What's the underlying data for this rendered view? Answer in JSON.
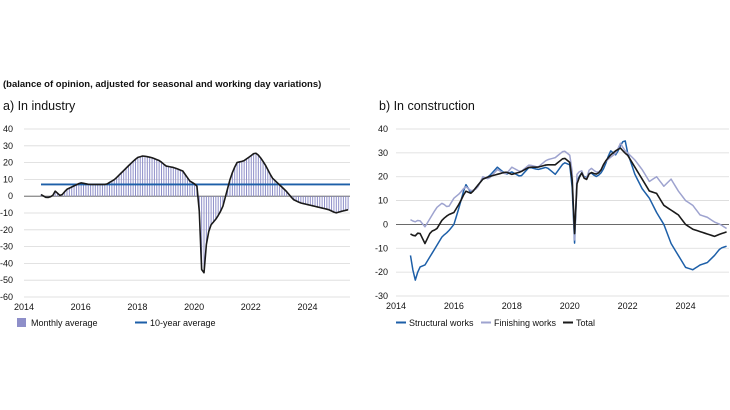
{
  "subtitle": "(balance of opinion, adjusted for seasonal and working day variations)",
  "colors": {
    "bars": "#8e8fc9",
    "avg10": "#1d5fa8",
    "structural": "#1d5fa8",
    "finishing": "#9ea3cf",
    "total": "#1a1a1a",
    "grid": "#d9d9d9"
  },
  "chart_data": [
    {
      "id": "industry",
      "title": "a)  In industry",
      "type": "bar",
      "xlabel": "",
      "ylabel": "",
      "xlim": [
        2014,
        2025.5
      ],
      "ylim": [
        -60,
        40
      ],
      "x_ticks": [
        2014,
        2016,
        2018,
        2020,
        2022,
        2024
      ],
      "y_ticks": [
        -60,
        -50,
        -40,
        -30,
        -20,
        -10,
        0,
        10,
        20,
        30,
        40
      ],
      "grid": true,
      "legend": [
        {
          "name": "Monthly average",
          "kind": "bar"
        },
        {
          "name": "10-year average",
          "kind": "line"
        }
      ],
      "reference_line": {
        "name": "10-year average",
        "value": 7
      },
      "anchors": [
        [
          2014.6,
          1
        ],
        [
          2014.8,
          -1
        ],
        [
          2015.0,
          0
        ],
        [
          2015.1,
          3
        ],
        [
          2015.3,
          0
        ],
        [
          2015.5,
          4
        ],
        [
          2015.75,
          6
        ],
        [
          2016.0,
          8
        ],
        [
          2016.3,
          7
        ],
        [
          2016.6,
          7
        ],
        [
          2016.9,
          7
        ],
        [
          2017.2,
          10
        ],
        [
          2017.5,
          15
        ],
        [
          2017.8,
          20
        ],
        [
          2018.0,
          23
        ],
        [
          2018.2,
          24
        ],
        [
          2018.5,
          23
        ],
        [
          2018.8,
          21
        ],
        [
          2019.0,
          18
        ],
        [
          2019.3,
          17
        ],
        [
          2019.6,
          15
        ],
        [
          2019.85,
          9
        ],
        [
          2020.05,
          7
        ],
        [
          2020.15,
          5
        ],
        [
          2020.27,
          -45
        ],
        [
          2020.33,
          -50
        ],
        [
          2020.42,
          -30
        ],
        [
          2020.55,
          -18
        ],
        [
          2020.8,
          -13
        ],
        [
          2021.0,
          -7
        ],
        [
          2021.3,
          12
        ],
        [
          2021.5,
          20
        ],
        [
          2021.75,
          21
        ],
        [
          2022.0,
          24
        ],
        [
          2022.15,
          26
        ],
        [
          2022.3,
          24
        ],
        [
          2022.5,
          19
        ],
        [
          2022.75,
          11
        ],
        [
          2023.0,
          7
        ],
        [
          2023.25,
          3
        ],
        [
          2023.5,
          -2
        ],
        [
          2023.75,
          -4
        ],
        [
          2024.0,
          -5
        ],
        [
          2024.25,
          -6
        ],
        [
          2024.5,
          -7
        ],
        [
          2024.75,
          -8
        ],
        [
          2025.0,
          -10
        ],
        [
          2025.2,
          -9
        ],
        [
          2025.45,
          -8
        ]
      ]
    },
    {
      "id": "construction",
      "title": "b)  In construction",
      "type": "line",
      "xlabel": "",
      "ylabel": "",
      "xlim": [
        2014,
        2025.5
      ],
      "ylim": [
        -30,
        40
      ],
      "x_ticks": [
        2014,
        2016,
        2018,
        2020,
        2022,
        2024
      ],
      "y_ticks": [
        -30,
        -20,
        -10,
        0,
        10,
        20,
        30,
        40
      ],
      "grid": true,
      "legend": [
        {
          "name": "Structural works"
        },
        {
          "name": "Finishing works"
        },
        {
          "name": "Total"
        }
      ],
      "series": [
        {
          "name": "Structural works",
          "anchors": [
            [
              2014.5,
              -13
            ],
            [
              2014.65,
              -24
            ],
            [
              2014.8,
              -18
            ],
            [
              2015.0,
              -17
            ],
            [
              2015.2,
              -13
            ],
            [
              2015.4,
              -9
            ],
            [
              2015.6,
              -5
            ],
            [
              2015.8,
              -3
            ],
            [
              2016.0,
              0
            ],
            [
              2016.2,
              8
            ],
            [
              2016.4,
              17
            ],
            [
              2016.6,
              13
            ],
            [
              2016.8,
              16
            ],
            [
              2017.0,
              19
            ],
            [
              2017.2,
              20
            ],
            [
              2017.5,
              24
            ],
            [
              2017.8,
              21
            ],
            [
              2018.0,
              22
            ],
            [
              2018.3,
              20
            ],
            [
              2018.6,
              24
            ],
            [
              2018.9,
              23
            ],
            [
              2019.2,
              24
            ],
            [
              2019.5,
              21
            ],
            [
              2019.8,
              26
            ],
            [
              2020.0,
              25
            ],
            [
              2020.08,
              17
            ],
            [
              2020.15,
              -13
            ],
            [
              2020.25,
              18
            ],
            [
              2020.4,
              22
            ],
            [
              2020.55,
              19
            ],
            [
              2020.7,
              22
            ],
            [
              2020.9,
              20
            ],
            [
              2021.05,
              21
            ],
            [
              2021.2,
              24
            ],
            [
              2021.4,
              31
            ],
            [
              2021.6,
              29
            ],
            [
              2021.75,
              33
            ],
            [
              2021.9,
              36
            ],
            [
              2022.0,
              30
            ],
            [
              2022.25,
              21
            ],
            [
              2022.5,
              15
            ],
            [
              2022.75,
              11
            ],
            [
              2023.0,
              5
            ],
            [
              2023.25,
              0
            ],
            [
              2023.5,
              -8
            ],
            [
              2023.75,
              -13
            ],
            [
              2024.0,
              -18
            ],
            [
              2024.25,
              -19
            ],
            [
              2024.5,
              -17
            ],
            [
              2024.75,
              -16
            ],
            [
              2025.0,
              -13
            ],
            [
              2025.2,
              -10
            ],
            [
              2025.45,
              -9
            ]
          ]
        },
        {
          "name": "Finishing works",
          "anchors": [
            [
              2014.5,
              2
            ],
            [
              2014.65,
              1
            ],
            [
              2014.8,
              2
            ],
            [
              2015.0,
              -1
            ],
            [
              2015.2,
              3
            ],
            [
              2015.4,
              7
            ],
            [
              2015.6,
              9
            ],
            [
              2015.8,
              7
            ],
            [
              2016.0,
              11
            ],
            [
              2016.2,
              13
            ],
            [
              2016.4,
              16
            ],
            [
              2016.6,
              14
            ],
            [
              2016.8,
              15
            ],
            [
              2017.0,
              20
            ],
            [
              2017.2,
              19
            ],
            [
              2017.5,
              23
            ],
            [
              2017.8,
              21
            ],
            [
              2018.0,
              24
            ],
            [
              2018.3,
              22
            ],
            [
              2018.6,
              25
            ],
            [
              2018.9,
              24
            ],
            [
              2019.2,
              27
            ],
            [
              2019.5,
              28
            ],
            [
              2019.8,
              31
            ],
            [
              2020.0,
              29
            ],
            [
              2020.08,
              24
            ],
            [
              2020.15,
              -12
            ],
            [
              2020.25,
              21
            ],
            [
              2020.4,
              23
            ],
            [
              2020.55,
              18
            ],
            [
              2020.7,
              24
            ],
            [
              2020.9,
              22
            ],
            [
              2021.05,
              22
            ],
            [
              2021.2,
              26
            ],
            [
              2021.4,
              28
            ],
            [
              2021.6,
              30
            ],
            [
              2021.75,
              34
            ],
            [
              2021.9,
              31
            ],
            [
              2022.0,
              30
            ],
            [
              2022.25,
              27
            ],
            [
              2022.5,
              23
            ],
            [
              2022.75,
              18
            ],
            [
              2023.0,
              20
            ],
            [
              2023.25,
              16
            ],
            [
              2023.5,
              19
            ],
            [
              2023.75,
              14
            ],
            [
              2024.0,
              10
            ],
            [
              2024.25,
              8
            ],
            [
              2024.5,
              4
            ],
            [
              2024.75,
              3
            ],
            [
              2025.0,
              1
            ],
            [
              2025.2,
              0
            ],
            [
              2025.45,
              -2
            ]
          ]
        },
        {
          "name": "Total",
          "anchors": [
            [
              2014.5,
              -4
            ],
            [
              2014.65,
              -5
            ],
            [
              2014.8,
              -3
            ],
            [
              2015.0,
              -8
            ],
            [
              2015.2,
              -3
            ],
            [
              2015.4,
              -2
            ],
            [
              2015.6,
              2
            ],
            [
              2015.8,
              4
            ],
            [
              2016.0,
              5
            ],
            [
              2016.2,
              9
            ],
            [
              2016.4,
              14
            ],
            [
              2016.6,
              13
            ],
            [
              2016.8,
              16
            ],
            [
              2017.0,
              19
            ],
            [
              2017.2,
              20
            ],
            [
              2017.5,
              21
            ],
            [
              2017.8,
              22
            ],
            [
              2018.0,
              21
            ],
            [
              2018.3,
              22
            ],
            [
              2018.6,
              24
            ],
            [
              2018.9,
              24
            ],
            [
              2019.2,
              25
            ],
            [
              2019.5,
              25
            ],
            [
              2019.8,
              28
            ],
            [
              2020.0,
              26
            ],
            [
              2020.08,
              20
            ],
            [
              2020.15,
              -8
            ],
            [
              2020.25,
              17
            ],
            [
              2020.4,
              22
            ],
            [
              2020.55,
              18
            ],
            [
              2020.7,
              22
            ],
            [
              2020.9,
              21
            ],
            [
              2021.05,
              22
            ],
            [
              2021.2,
              26
            ],
            [
              2021.4,
              29
            ],
            [
              2021.6,
              31
            ],
            [
              2021.75,
              32
            ],
            [
              2021.9,
              30
            ],
            [
              2022.0,
              29
            ],
            [
              2022.25,
              24
            ],
            [
              2022.5,
              19
            ],
            [
              2022.75,
              14
            ],
            [
              2023.0,
              13
            ],
            [
              2023.25,
              8
            ],
            [
              2023.5,
              6
            ],
            [
              2023.75,
              4
            ],
            [
              2024.0,
              0
            ],
            [
              2024.25,
              -2
            ],
            [
              2024.5,
              -3
            ],
            [
              2024.75,
              -4
            ],
            [
              2025.0,
              -5
            ],
            [
              2025.2,
              -4
            ],
            [
              2025.45,
              -3
            ]
          ]
        }
      ]
    }
  ]
}
